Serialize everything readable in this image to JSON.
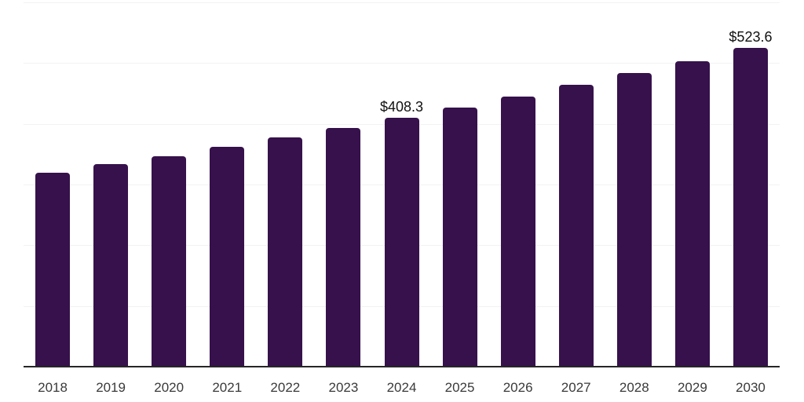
{
  "chart_data": {
    "type": "bar",
    "title": "",
    "xlabel": "",
    "ylabel": "",
    "categories": [
      "2018",
      "2019",
      "2020",
      "2021",
      "2022",
      "2023",
      "2024",
      "2025",
      "2026",
      "2027",
      "2028",
      "2029",
      "2030"
    ],
    "values": [
      318.2,
      331.7,
      345.8,
      360.4,
      375.7,
      391.7,
      408.3,
      425.6,
      443.6,
      462.4,
      482.0,
      502.3,
      523.6
    ],
    "point_labels": [
      "",
      "",
      "",
      "",
      "",
      "",
      "$408.3",
      "",
      "",
      "",
      "",
      "",
      "$523.6"
    ],
    "ylim": [
      0,
      600
    ],
    "grid_step": 100,
    "grid": true,
    "y_tick_labels_visible": false,
    "legend_position": "none",
    "colors": {
      "bar": "#36114B",
      "gridline": "#f2f2f2",
      "axis": "#262626",
      "tick_label": "#3a3a3a",
      "value_label": "#111111",
      "background": "#ffffff"
    }
  }
}
